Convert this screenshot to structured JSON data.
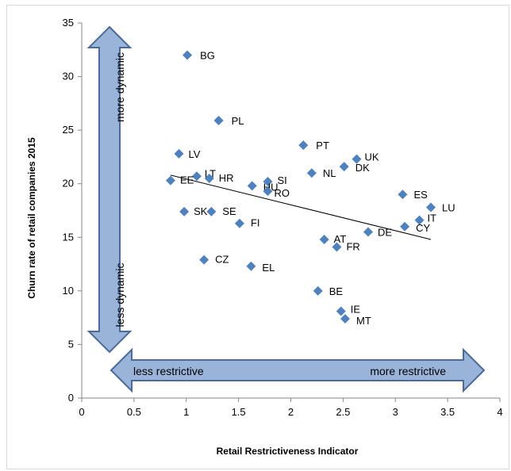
{
  "chart_data": {
    "type": "scatter",
    "title": "",
    "xlabel": "Retail Restrictiveness Indicator",
    "ylabel": "Churn rate of retail companies 2015",
    "xlim": [
      0,
      4
    ],
    "ylim": [
      0,
      35
    ],
    "x_ticks": [
      "0",
      "0.5",
      "1",
      "1.5",
      "2",
      "2.5",
      "3",
      "3.5",
      "4"
    ],
    "y_ticks": [
      "0",
      "5",
      "10",
      "15",
      "20",
      "25",
      "30",
      "35"
    ],
    "grid": false,
    "marker_color": "#4f81bd",
    "points": [
      {
        "label": "BG",
        "x": 1.01,
        "y": 32.0
      },
      {
        "label": "PL",
        "x": 1.31,
        "y": 25.9
      },
      {
        "label": "LV",
        "x": 0.93,
        "y": 22.8
      },
      {
        "label": "PT",
        "x": 2.12,
        "y": 23.6
      },
      {
        "label": "UK",
        "x": 2.63,
        "y": 22.3
      },
      {
        "label": "DK",
        "x": 2.51,
        "y": 21.6
      },
      {
        "label": "NL",
        "x": 2.2,
        "y": 21.0
      },
      {
        "label": "LT",
        "x": 1.1,
        "y": 20.7
      },
      {
        "label": "HR",
        "x": 1.22,
        "y": 20.5
      },
      {
        "label": "EE",
        "x": 0.85,
        "y": 20.3
      },
      {
        "label": "SI",
        "x": 1.78,
        "y": 20.2
      },
      {
        "label": "HU",
        "x": 1.63,
        "y": 19.8
      },
      {
        "label": "RO",
        "x": 1.78,
        "y": 19.3
      },
      {
        "label": "ES",
        "x": 3.07,
        "y": 19.0
      },
      {
        "label": "LU",
        "x": 3.34,
        "y": 17.8
      },
      {
        "label": "SK",
        "x": 0.98,
        "y": 17.4
      },
      {
        "label": "SE",
        "x": 1.24,
        "y": 17.4
      },
      {
        "label": "IT",
        "x": 3.23,
        "y": 16.6
      },
      {
        "label": "FI",
        "x": 1.51,
        "y": 16.3
      },
      {
        "label": "CY",
        "x": 3.09,
        "y": 16.0
      },
      {
        "label": "DE",
        "x": 2.74,
        "y": 15.5
      },
      {
        "label": "AT",
        "x": 2.32,
        "y": 14.8
      },
      {
        "label": "FR",
        "x": 2.44,
        "y": 14.1
      },
      {
        "label": "CZ",
        "x": 1.17,
        "y": 12.9
      },
      {
        "label": "EL",
        "x": 1.62,
        "y": 12.3
      },
      {
        "label": "BE",
        "x": 2.26,
        "y": 10.0
      },
      {
        "label": "IE",
        "x": 2.48,
        "y": 8.1
      },
      {
        "label": "MT",
        "x": 2.52,
        "y": 7.4
      }
    ],
    "trendline": {
      "x": [
        0.85,
        3.34
      ],
      "y": [
        20.8,
        14.8
      ]
    },
    "annotations": {
      "vertical_arrow_top": "more dynamic",
      "vertical_arrow_bottom": "less dynamic",
      "horizontal_arrow_left": "less restrictive",
      "horizontal_arrow_right": "more restrictive"
    }
  }
}
